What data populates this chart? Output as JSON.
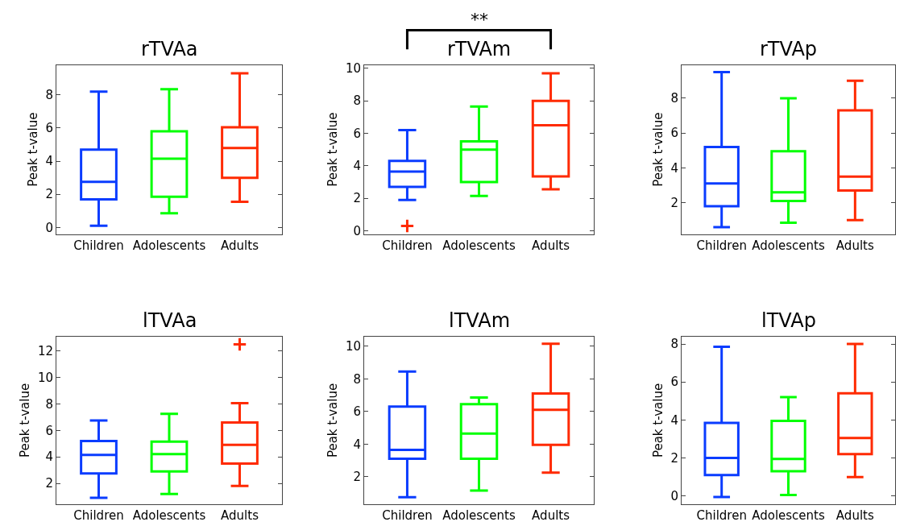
{
  "chart_data": [
    {
      "type": "box",
      "title": "rTVAa",
      "ylabel": "Peak t-value",
      "categories": [
        "Children",
        "Adolescents",
        "Adults"
      ],
      "colors": [
        "#0a3cff",
        "#00ff00",
        "#ff2a00"
      ],
      "ylim": [
        -0.4,
        9.8
      ],
      "yticks": [
        0,
        2,
        4,
        6,
        8
      ],
      "boxes": [
        {
          "low": 0.1,
          "q1": 1.7,
          "median": 2.75,
          "q3": 4.7,
          "high": 8.2
        },
        {
          "low": 0.85,
          "q1": 1.85,
          "median": 4.15,
          "q3": 5.8,
          "high": 8.35
        },
        {
          "low": 1.55,
          "q1": 3.0,
          "median": 4.8,
          "q3": 6.05,
          "high": 9.3
        }
      ]
    },
    {
      "type": "box",
      "title": "rTVAm",
      "ylabel": "Peak t-value",
      "categories": [
        "Children",
        "Adolescents",
        "Adults"
      ],
      "colors": [
        "#0a3cff",
        "#00ff00",
        "#ff2a00"
      ],
      "ylim": [
        -0.2,
        10.2
      ],
      "yticks": [
        0,
        2,
        4,
        6,
        8,
        10
      ],
      "annotations": [
        "**"
      ],
      "boxes": [
        {
          "low": 1.9,
          "q1": 2.7,
          "median": 3.65,
          "q3": 4.3,
          "high": 6.2
        },
        {
          "low": 2.15,
          "q1": 3.0,
          "median": 5.0,
          "q3": 5.5,
          "high": 7.65
        },
        {
          "low": 2.55,
          "q1": 3.35,
          "median": 6.5,
          "q3": 8.0,
          "high": 9.7
        }
      ],
      "series": [
        {
          "type": "scatter",
          "color": "#ff2a00",
          "marker": "cross",
          "x": [
            "Children"
          ],
          "values": [
            0.3
          ]
        }
      ]
    },
    {
      "type": "box",
      "title": "rTVAp",
      "ylabel": "Peak t-value",
      "categories": [
        "Children",
        "Adolescents",
        "Adults"
      ],
      "colors": [
        "#0a3cff",
        "#00ff00",
        "#ff2a00"
      ],
      "ylim": [
        0.2,
        9.9
      ],
      "yticks": [
        2,
        4,
        6,
        8
      ],
      "boxes": [
        {
          "low": 0.6,
          "q1": 1.8,
          "median": 3.1,
          "q3": 5.2,
          "high": 9.5
        },
        {
          "low": 0.85,
          "q1": 2.1,
          "median": 2.6,
          "q3": 4.95,
          "high": 8.0
        },
        {
          "low": 1.0,
          "q1": 2.7,
          "median": 3.5,
          "q3": 7.3,
          "high": 9.0
        }
      ]
    },
    {
      "type": "box",
      "title": "lTVAa",
      "ylabel": "Peak t-value",
      "categories": [
        "Children",
        "Adolescents",
        "Adults"
      ],
      "colors": [
        "#0a3cff",
        "#00ff00",
        "#ff2a00"
      ],
      "ylim": [
        0.4,
        13.1
      ],
      "yticks": [
        2,
        4,
        6,
        8,
        10,
        12
      ],
      "boxes": [
        {
          "low": 0.9,
          "q1": 2.75,
          "median": 4.15,
          "q3": 5.2,
          "high": 6.75
        },
        {
          "low": 1.2,
          "q1": 2.9,
          "median": 4.2,
          "q3": 5.15,
          "high": 7.25
        },
        {
          "low": 1.8,
          "q1": 3.5,
          "median": 4.9,
          "q3": 6.6,
          "high": 8.05
        }
      ],
      "series": [
        {
          "type": "scatter",
          "color": "#ff2a00",
          "marker": "cross",
          "x": [
            "Adults"
          ],
          "values": [
            12.5
          ]
        }
      ]
    },
    {
      "type": "box",
      "title": "lTVAm",
      "ylabel": "Peak t-value",
      "categories": [
        "Children",
        "Adolescents",
        "Adults"
      ],
      "colors": [
        "#0a3cff",
        "#00ff00",
        "#ff2a00"
      ],
      "ylim": [
        0.3,
        10.6
      ],
      "yticks": [
        2,
        4,
        6,
        8,
        10
      ],
      "boxes": [
        {
          "low": 0.75,
          "q1": 3.1,
          "median": 3.65,
          "q3": 6.3,
          "high": 8.45
        },
        {
          "low": 1.15,
          "q1": 3.1,
          "median": 4.65,
          "q3": 6.45,
          "high": 6.85
        },
        {
          "low": 2.25,
          "q1": 3.95,
          "median": 6.1,
          "q3": 7.1,
          "high": 10.15
        }
      ]
    },
    {
      "type": "box",
      "title": "lTVAp",
      "ylabel": "Peak t-value",
      "categories": [
        "Children",
        "Adolescents",
        "Adults"
      ],
      "colors": [
        "#0a3cff",
        "#00ff00",
        "#ff2a00"
      ],
      "ylim": [
        -0.45,
        8.4
      ],
      "yticks": [
        0,
        2,
        4,
        6,
        8
      ],
      "boxes": [
        {
          "low": -0.05,
          "q1": 1.1,
          "median": 2.0,
          "q3": 3.85,
          "high": 7.85
        },
        {
          "low": 0.05,
          "q1": 1.3,
          "median": 1.95,
          "q3": 3.95,
          "high": 5.2
        },
        {
          "low": 1.0,
          "q1": 2.2,
          "median": 3.05,
          "q3": 5.4,
          "high": 8.0
        }
      ]
    }
  ]
}
